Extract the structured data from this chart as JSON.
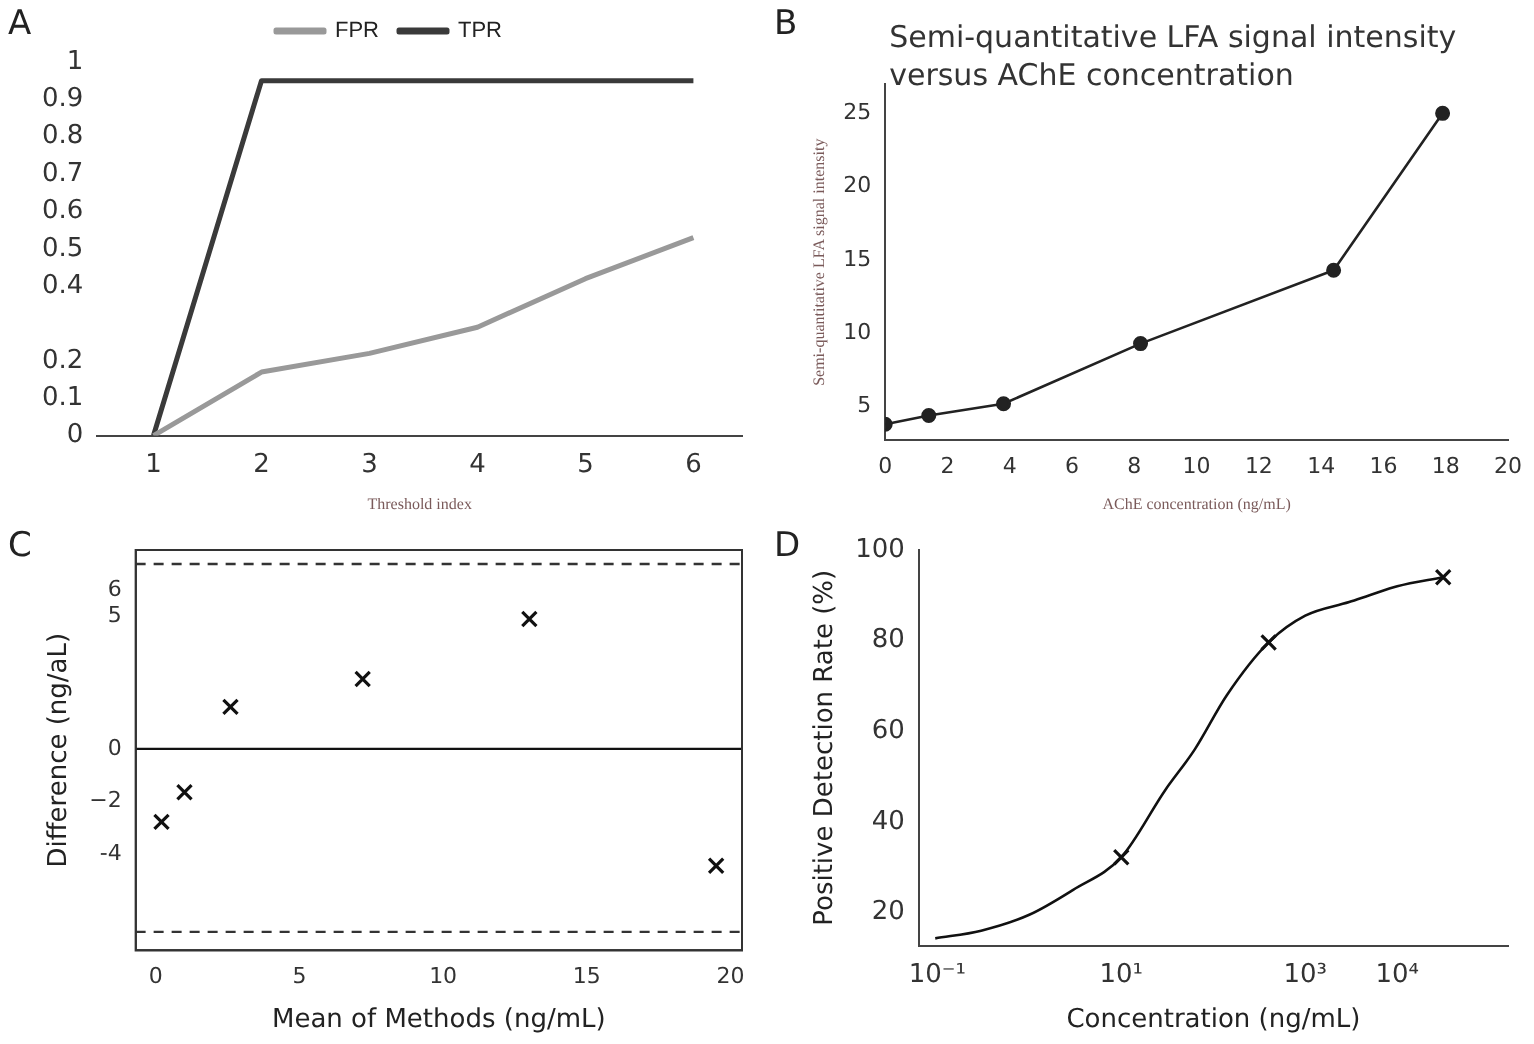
{
  "chart_data": [
    {
      "type": "line",
      "annotations": [
        "A"
      ],
      "xlabel": "Threshold index",
      "x": [
        1,
        2,
        3,
        4,
        5,
        6
      ],
      "xlim": [
        0.48,
        6.45
      ],
      "xticks": [
        1,
        2,
        3,
        4,
        5,
        6
      ],
      "ylim": [
        0,
        1
      ],
      "yticks": [
        0,
        0.1,
        0.2,
        0.4,
        0.5,
        0.6,
        0.7,
        0.8,
        0.9,
        1
      ],
      "grid": false,
      "legend": "top",
      "marker": "none",
      "series": [
        {
          "name": "FPR",
          "color": "#999999",
          "values": [
            0,
            0.17,
            0.22,
            0.29,
            0.42,
            0.53
          ]
        },
        {
          "name": "TPR",
          "color": "#3a3a3a",
          "values": [
            0,
            0.95,
            0.95,
            0.95,
            0.95,
            0.95
          ]
        }
      ]
    },
    {
      "type": "line",
      "annotations": [
        "B"
      ],
      "title": "Semi-quantitative LFA signal intensity versus AChE concentration",
      "xlabel": "AChE concentration (ng/mL)",
      "ylabel": "Semi-quantitative LFA signal intensity",
      "xlim": [
        0,
        20
      ],
      "xticks": [
        0,
        2,
        4,
        6,
        8,
        10,
        12,
        14,
        16,
        18,
        20
      ],
      "ylim": [
        2.7,
        27
      ],
      "yticks": [
        5,
        10,
        15,
        20,
        25
      ],
      "grid": false,
      "legend": false,
      "marker": "circle",
      "series": [
        {
          "color": "#222222",
          "x": [
            0,
            1.4,
            3.8,
            8.2,
            14.4,
            17.9
          ],
          "values": [
            3.8,
            4.4,
            5.2,
            9.3,
            14.3,
            25.0
          ]
        }
      ]
    },
    {
      "type": "scatter",
      "annotations": [
        "C"
      ],
      "xlabel": "Mean of Methods (ng/mL)",
      "ylabel": "Difference (ng/aL)",
      "xlim": [
        -0.7,
        20.4
      ],
      "xticks": [
        0,
        5,
        10,
        15,
        20
      ],
      "ylim": [
        -7.62,
        7.52
      ],
      "yticks": [
        {
          "value": -2,
          "label": "−2"
        },
        -4,
        0,
        5,
        6
      ],
      "grid": false,
      "legend": false,
      "marker": "cross",
      "ref_lines": [
        {
          "axis": "y",
          "value": 6.99,
          "line_style": "dashed",
          "color": "#333333"
        },
        {
          "axis": "y",
          "value": 0,
          "line_style": "solid",
          "color": "#111111"
        },
        {
          "axis": "y",
          "value": -6.92,
          "line_style": "dashed",
          "color": "#333333"
        }
      ],
      "series": [
        {
          "color": "#111111",
          "x": [
            0.2,
            1.0,
            2.6,
            7.2,
            13.0,
            19.5
          ],
          "values": [
            -2.76,
            -1.64,
            1.59,
            2.64,
            4.91,
            -4.42
          ]
        }
      ]
    },
    {
      "type": "line",
      "annotations": [
        "D"
      ],
      "xlabel": "Concentration (ng/mL)",
      "ylabel": "Positive Detection Rate (%)",
      "log": "x",
      "xlim": [
        0.063,
        160000
      ],
      "xticks": [
        {
          "value": 0.1,
          "label": "10⁻¹"
        },
        {
          "value": 10,
          "label": "10¹"
        },
        {
          "value": 1000,
          "label": "10³"
        },
        {
          "value": 10000,
          "label": "10⁴"
        }
      ],
      "ylim": [
        12.7,
        100
      ],
      "yticks": [
        20,
        40,
        60,
        80,
        100
      ],
      "grid": false,
      "legend": false,
      "series": [
        {
          "type": "line",
          "marker": "none",
          "color": "#111111",
          "x": [
            0.095,
            0.3,
            1,
            3,
            10,
            30,
            63,
            141,
            400,
            1000,
            3000,
            5000,
            10000,
            31600
          ],
          "values": [
            14.3,
            16,
            19.5,
            25,
            32.2,
            47,
            56,
            68,
            79.6,
            85.5,
            88.5,
            90,
            92,
            94
          ]
        },
        {
          "type": "scatter",
          "marker": "cross",
          "color": "#111111",
          "x": [
            10,
            400,
            31600
          ],
          "values": [
            32.2,
            79.6,
            94
          ]
        }
      ]
    }
  ]
}
